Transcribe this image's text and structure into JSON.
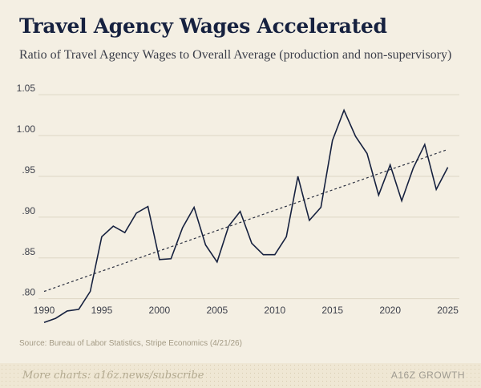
{
  "header": {
    "title": "Travel Agency Wages Accelerated",
    "subtitle": "Ratio of Travel Agency Wages to Overall Average (production and non-supervisory)"
  },
  "source": "Source: Bureau of Labor Statistics, Stripe Economics (4/21/26)",
  "footer": {
    "more_charts": "More charts: a16z.news/subscribe",
    "brand": "A16Z GROWTH"
  },
  "colors": {
    "background": "#f4efe3",
    "line": "#16213f",
    "trend": "#2a2f3f",
    "grid": "#ddd6c4",
    "title": "#16213f"
  },
  "chart_data": {
    "type": "line",
    "title": "Travel Agency Wages Accelerated",
    "subtitle": "Ratio of Travel Agency Wages to Overall Average (production and non-supervisory)",
    "xlabel": "",
    "ylabel": "",
    "xlim": [
      1990,
      2026
    ],
    "ylim": [
      0.78,
      1.06
    ],
    "x_ticks": [
      1990,
      1995,
      2000,
      2005,
      2010,
      2015,
      2020,
      2025
    ],
    "x_tick_labels": [
      "1990",
      "1995",
      "2000",
      "2005",
      "2010",
      "2015",
      "2020",
      "2025"
    ],
    "y_ticks": [
      0.8,
      0.85,
      0.9,
      0.95,
      1.0,
      1.05
    ],
    "y_tick_labels": [
      ".80",
      ".85",
      ".90",
      ".95",
      "1.00",
      "1.05"
    ],
    "grid": "horizontal",
    "series": [
      {
        "style": "solid",
        "x": [
          1990,
          1991,
          1992,
          1993,
          1994,
          1995,
          1996,
          1997,
          1998,
          1999,
          2000,
          2001,
          2002,
          2003,
          2004,
          2005,
          2006,
          2007,
          2008,
          2009,
          2010,
          2011,
          2012,
          2013,
          2014,
          2015,
          2016,
          2017,
          2018,
          2019,
          2020,
          2021,
          2022,
          2023,
          2024,
          2025
        ],
        "values": [
          0.771,
          0.776,
          0.785,
          0.787,
          0.809,
          0.876,
          0.889,
          0.881,
          0.905,
          0.913,
          0.848,
          0.849,
          0.887,
          0.912,
          0.866,
          0.845,
          0.889,
          0.907,
          0.868,
          0.854,
          0.854,
          0.876,
          0.95,
          0.896,
          0.912,
          0.994,
          1.031,
          0.999,
          0.978,
          0.927,
          0.964,
          0.92,
          0.96,
          0.989,
          0.934,
          0.961
        ]
      },
      {
        "style": "dotted",
        "x": [
          1990,
          2025
        ],
        "values": [
          0.809,
          0.983
        ]
      }
    ]
  }
}
